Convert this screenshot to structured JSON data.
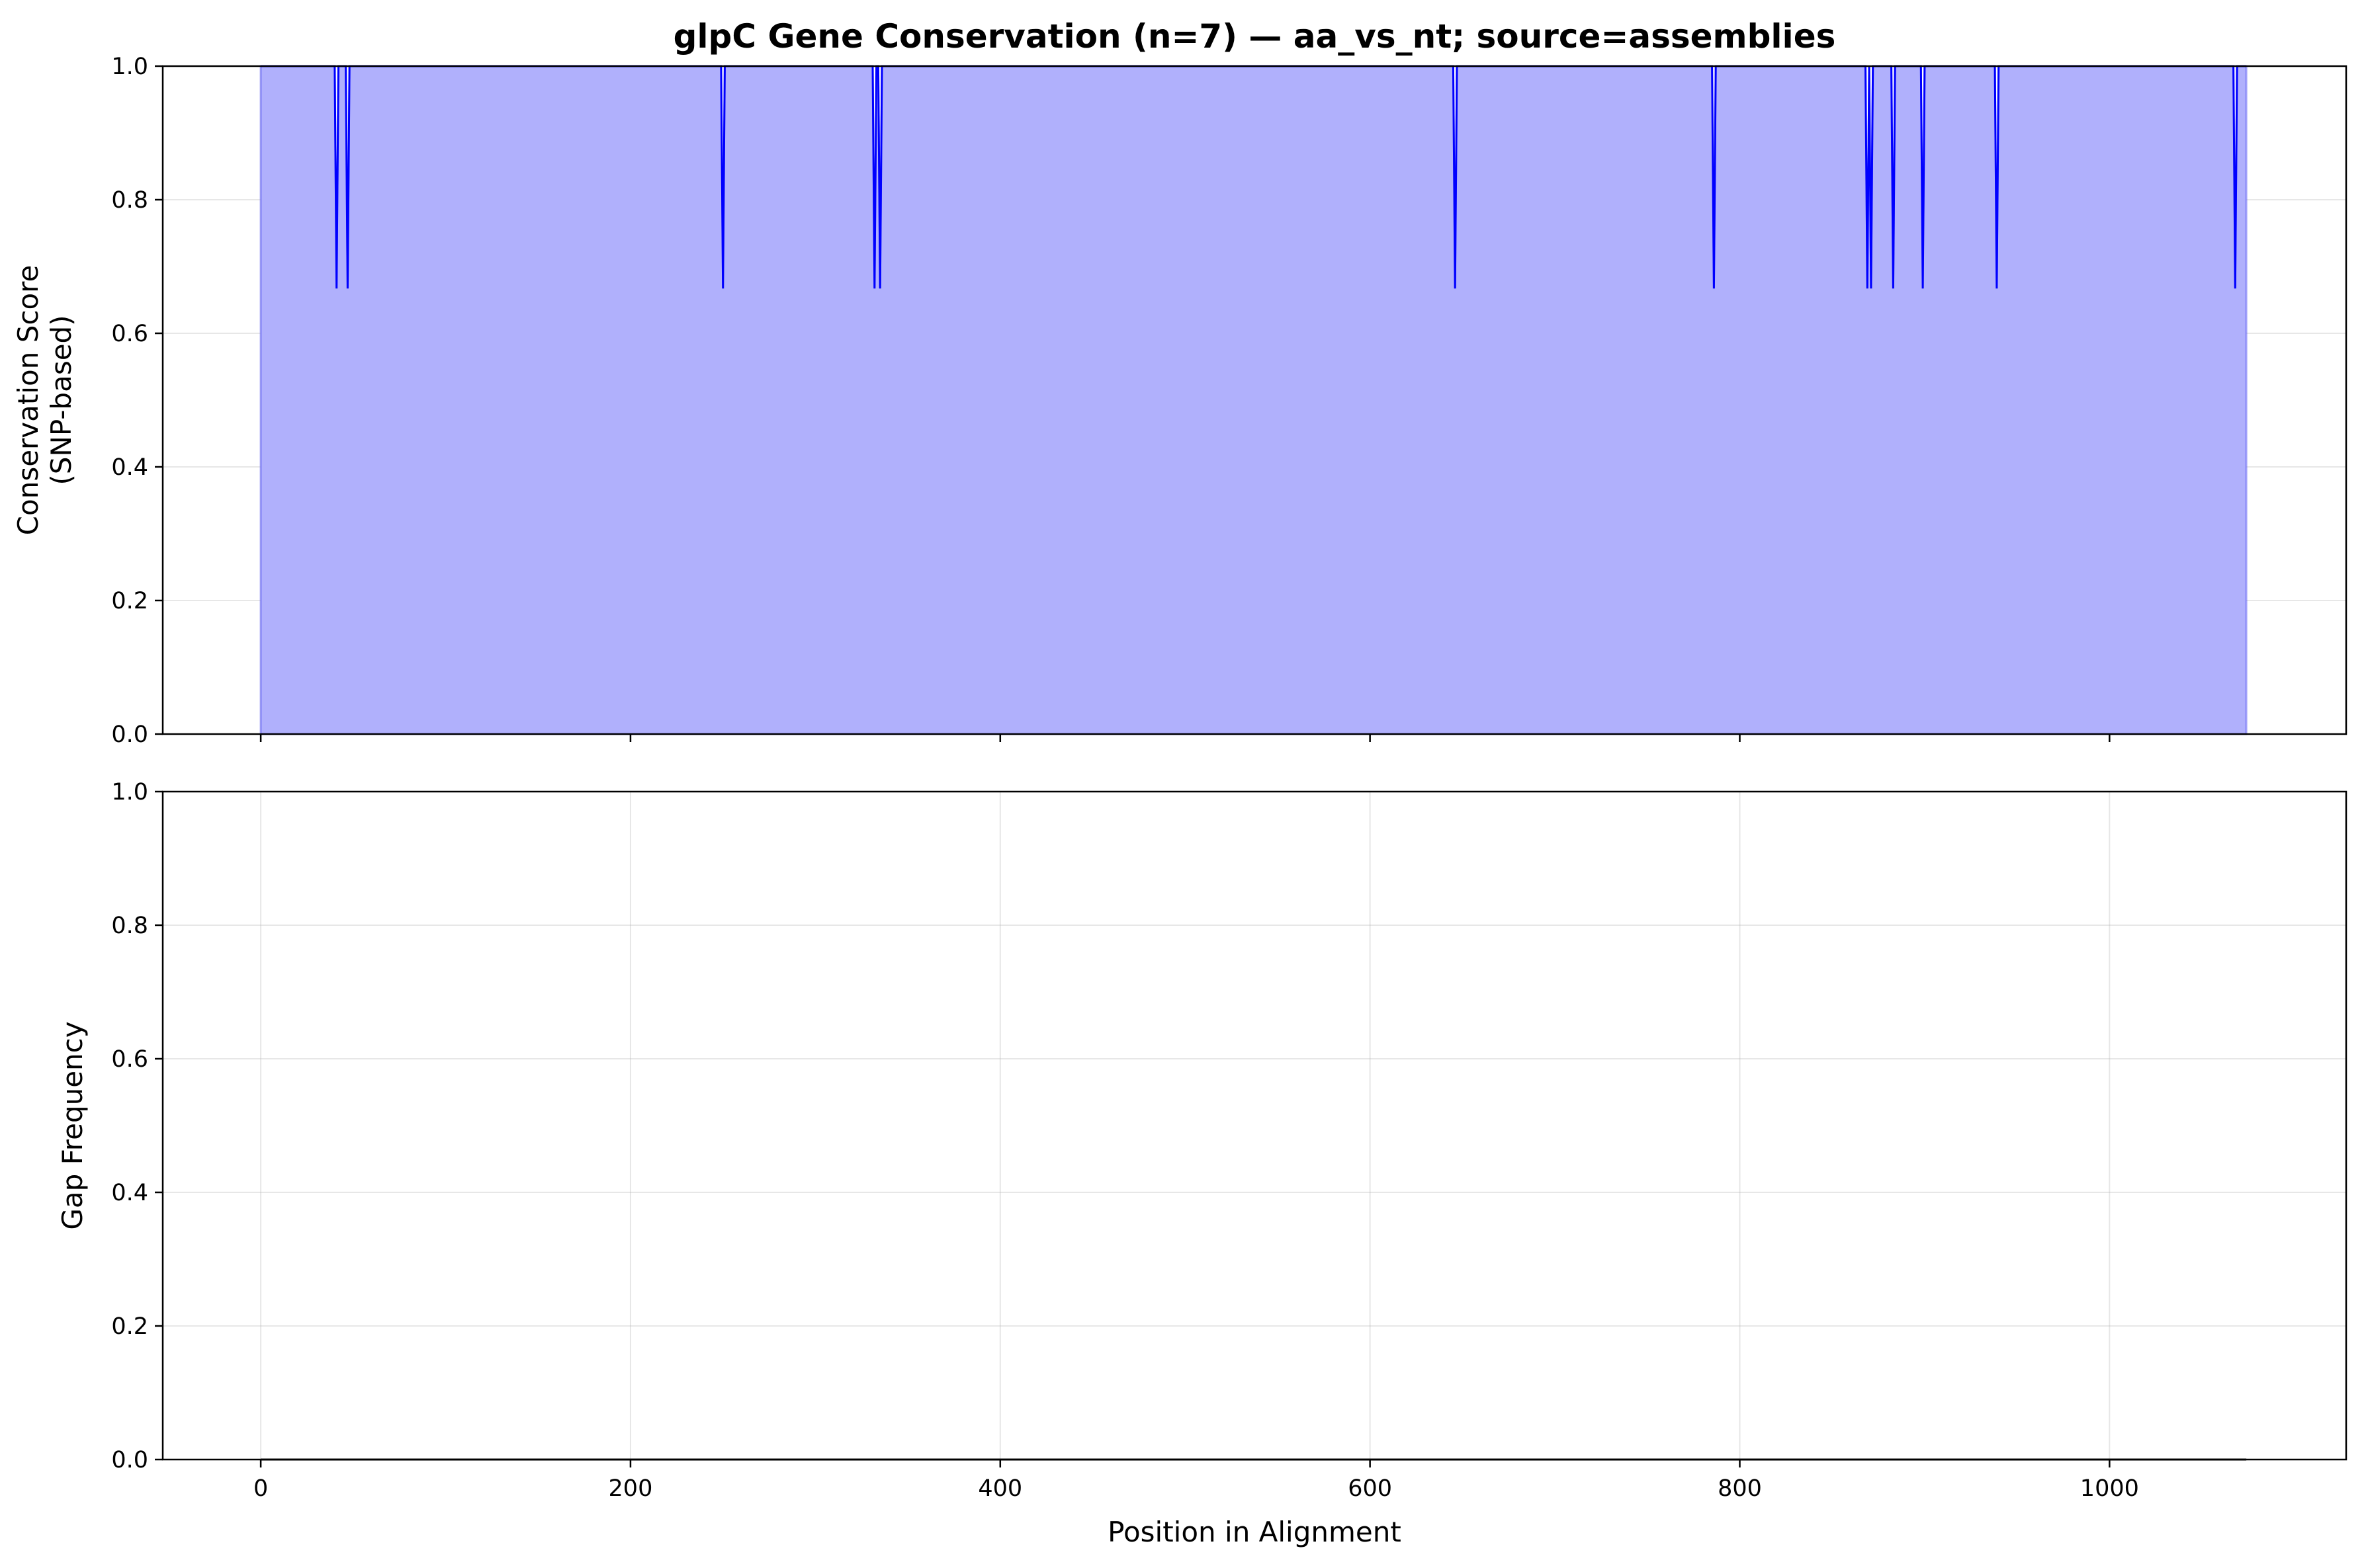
{
  "chart_data": {
    "type": "area",
    "title": "glpC Gene Conservation (n=7) — aa_vs_nt; source=assemblies",
    "xlabel": "Position in Alignment",
    "xlim": [
      -53,
      1128
    ],
    "xticks": [
      0,
      200,
      400,
      600,
      800,
      1000
    ],
    "grid": true,
    "x_range": [
      0,
      1074
    ],
    "panels": [
      {
        "name": "conservation",
        "ylabel": "Conservation Score\n(SNP-based)",
        "ylim": [
          0,
          1
        ],
        "yticks": [
          0.0,
          0.2,
          0.4,
          0.6,
          0.8,
          1.0
        ],
        "baseline": 1.0,
        "dip_value": 0.667,
        "dip_positions": [
          41,
          47,
          250,
          332,
          335,
          646,
          786,
          869,
          871,
          883,
          899,
          939,
          1068
        ],
        "fill_color": "#b0b0fc",
        "line_color": "#0000ff"
      },
      {
        "name": "gaps",
        "ylabel": "Gap Frequency",
        "ylim": [
          0,
          1
        ],
        "yticks": [
          0.0,
          0.2,
          0.4,
          0.6,
          0.8,
          1.0
        ],
        "baseline": 0.0,
        "line_color": "#000000"
      }
    ]
  }
}
